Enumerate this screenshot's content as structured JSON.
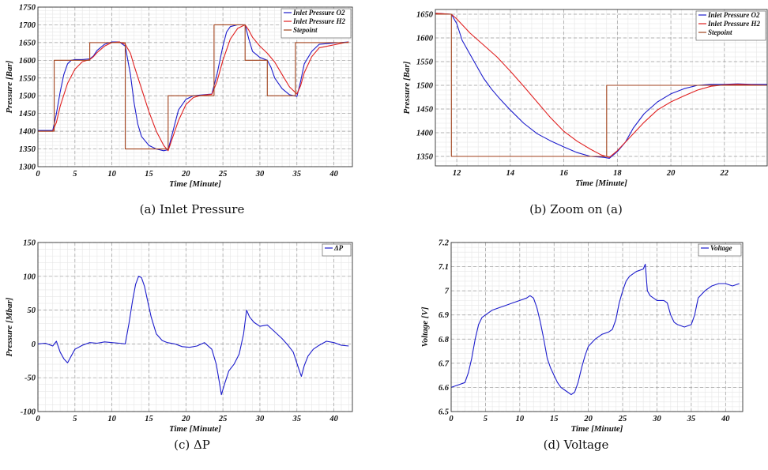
{
  "colors": {
    "o2": "#1c1ccc",
    "h2": "#e02020",
    "setpoint": "#a0421c",
    "dp": "#1c1ccc",
    "voltage": "#1c1ccc"
  },
  "chart_data": [
    {
      "id": "a",
      "type": "line",
      "caption": "(a) Inlet Pressure",
      "xlabel": "Time [Minute]",
      "ylabel": "Pressure [Bar]",
      "xlim": [
        0,
        42.5
      ],
      "ylim": [
        1300,
        1750
      ],
      "xticks": [
        0,
        5,
        10,
        15,
        20,
        25,
        30,
        35,
        40
      ],
      "yticks": [
        1300,
        1350,
        1400,
        1450,
        1500,
        1550,
        1600,
        1650,
        1700,
        1750
      ],
      "grid": true,
      "legend": "top-right",
      "series": [
        {
          "name": "Inlet Pressure O2",
          "color": "#1c1ccc",
          "x": [
            0,
            2,
            2.5,
            3,
            3.5,
            4,
            4.5,
            5,
            6,
            7,
            7.5,
            8,
            9,
            10,
            11,
            11.8,
            12.5,
            13,
            13.5,
            14,
            15,
            16,
            17,
            17.6,
            18,
            18.5,
            19,
            20,
            21,
            22,
            23.5,
            24.2,
            25,
            25.5,
            26,
            27,
            28,
            28.5,
            29,
            30,
            31,
            31.5,
            32,
            33,
            34,
            35,
            35.5,
            36,
            37,
            38,
            42
          ],
          "values": [
            1402,
            1402,
            1450,
            1510,
            1560,
            1590,
            1600,
            1602,
            1602,
            1604,
            1612,
            1628,
            1645,
            1652,
            1652,
            1640,
            1560,
            1480,
            1420,
            1385,
            1360,
            1350,
            1345,
            1348,
            1380,
            1420,
            1460,
            1490,
            1500,
            1502,
            1505,
            1560,
            1640,
            1680,
            1695,
            1700,
            1700,
            1660,
            1625,
            1608,
            1600,
            1580,
            1550,
            1520,
            1503,
            1498,
            1540,
            1590,
            1625,
            1645,
            1652
          ]
        },
        {
          "name": "Inlet Pressure H2",
          "color": "#e02020",
          "x": [
            0,
            2,
            2.5,
            3,
            4,
            5,
            6,
            7,
            7.5,
            8,
            9,
            10,
            11,
            11.8,
            12.5,
            13,
            14,
            15,
            16,
            17,
            17.6,
            18,
            19,
            20,
            21,
            22,
            23.5,
            24.2,
            25,
            26,
            27,
            28,
            28.5,
            29,
            30,
            31,
            32,
            33,
            34,
            35,
            35.5,
            36,
            37,
            38,
            42
          ],
          "values": [
            1400,
            1400,
            1425,
            1470,
            1535,
            1575,
            1596,
            1602,
            1610,
            1622,
            1640,
            1650,
            1652,
            1645,
            1620,
            1585,
            1520,
            1455,
            1400,
            1360,
            1345,
            1370,
            1430,
            1475,
            1495,
            1501,
            1504,
            1540,
            1600,
            1660,
            1690,
            1700,
            1685,
            1665,
            1640,
            1620,
            1595,
            1560,
            1525,
            1505,
            1528,
            1565,
            1610,
            1635,
            1652
          ]
        },
        {
          "name": "Stepoint",
          "color": "#a0421c",
          "step": true,
          "x": [
            0,
            2.2,
            2.2,
            7,
            7,
            11.8,
            11.8,
            17.6,
            17.6,
            23.8,
            23.8,
            28,
            28,
            31,
            31,
            34.8,
            34.8,
            42
          ],
          "values": [
            1400,
            1400,
            1600,
            1600,
            1650,
            1650,
            1350,
            1350,
            1500,
            1500,
            1700,
            1700,
            1600,
            1600,
            1500,
            1500,
            1650,
            1650
          ]
        }
      ]
    },
    {
      "id": "b",
      "type": "line",
      "caption": "(b) Zoom on (a)",
      "xlabel": "Time [Minute]",
      "ylabel": "Pressure [Bar]",
      "xlim": [
        11.2,
        23.6
      ],
      "ylim": [
        1330,
        1660
      ],
      "xticks": [
        12,
        14,
        16,
        18,
        20,
        22
      ],
      "yticks": [
        1350,
        1400,
        1450,
        1500,
        1550,
        1600,
        1650
      ],
      "grid": true,
      "legend": "top-right",
      "series": [
        {
          "name": "Inlet Pressure O2",
          "color": "#1c1ccc",
          "x": [
            11.2,
            11.8,
            12,
            12.2,
            12.5,
            12.8,
            13,
            13.3,
            13.6,
            14,
            14.5,
            15,
            15.5,
            16,
            16.5,
            17,
            17.5,
            17.7,
            18,
            18.3,
            18.6,
            19,
            19.5,
            20,
            20.5,
            21,
            21.5,
            22,
            22.5,
            23,
            23.6
          ],
          "values": [
            1652,
            1650,
            1630,
            1595,
            1565,
            1535,
            1515,
            1492,
            1472,
            1448,
            1420,
            1398,
            1383,
            1370,
            1358,
            1350,
            1348,
            1346,
            1360,
            1380,
            1410,
            1440,
            1465,
            1482,
            1493,
            1500,
            1502,
            1502,
            1503,
            1502,
            1502
          ]
        },
        {
          "name": "Inlet Pressure H2",
          "color": "#e02020",
          "x": [
            11.2,
            11.8,
            12,
            12.5,
            13,
            13.5,
            14,
            14.5,
            15,
            15.5,
            16,
            16.5,
            17,
            17.4,
            17.7,
            18,
            18.5,
            19,
            19.5,
            20,
            20.5,
            21,
            21.5,
            22,
            22.5,
            23,
            23.6
          ],
          "values": [
            1652,
            1650,
            1640,
            1610,
            1585,
            1560,
            1530,
            1498,
            1465,
            1432,
            1403,
            1382,
            1365,
            1353,
            1348,
            1362,
            1392,
            1422,
            1448,
            1465,
            1478,
            1490,
            1498,
            1501,
            1502,
            1501,
            1500
          ]
        },
        {
          "name": "Stepoint",
          "color": "#a0421c",
          "step": true,
          "x": [
            11.2,
            11.8,
            11.8,
            17.6,
            17.6,
            23.6
          ],
          "values": [
            1650,
            1650,
            1350,
            1350,
            1500,
            1500
          ]
        }
      ]
    },
    {
      "id": "c",
      "type": "line",
      "caption": "(c) ΔP",
      "xlabel": "Time [Minute]",
      "ylabel": "Pressure [Mbar]",
      "xlim": [
        0,
        42.5
      ],
      "ylim": [
        -100,
        150
      ],
      "xticks": [
        0,
        5,
        10,
        15,
        20,
        25,
        30,
        35,
        40
      ],
      "yticks": [
        -100,
        -50,
        0,
        50,
        100,
        150
      ],
      "grid": true,
      "legend": "top-right",
      "series": [
        {
          "name": "ΔP",
          "color": "#1c1ccc",
          "x": [
            0,
            1,
            2,
            2.5,
            3,
            3.5,
            4,
            4.5,
            5,
            6,
            7,
            8,
            9,
            10,
            11,
            11.8,
            12.3,
            12.8,
            13.2,
            13.6,
            14,
            14.4,
            14.8,
            15.3,
            16,
            16.8,
            17.5,
            18.5,
            19.5,
            20.5,
            21.5,
            22.5,
            23.5,
            24.1,
            24.5,
            24.8,
            25.2,
            25.8,
            26.5,
            27.2,
            27.8,
            28.2,
            28.6,
            29.2,
            30,
            31,
            32,
            33,
            33.8,
            34.5,
            35.2,
            35.6,
            36,
            36.5,
            37.2,
            38,
            39,
            40,
            41,
            42
          ],
          "values": [
            0,
            1,
            -3,
            4,
            -12,
            -22,
            -28,
            -18,
            -8,
            -2,
            2,
            1,
            3,
            2,
            1,
            0,
            30,
            65,
            88,
            100,
            98,
            85,
            65,
            40,
            15,
            5,
            2,
            0,
            -4,
            -5,
            -3,
            2,
            -8,
            -30,
            -55,
            -75,
            -60,
            -40,
            -30,
            -15,
            15,
            50,
            40,
            32,
            26,
            28,
            18,
            8,
            -2,
            -12,
            -35,
            -48,
            -32,
            -18,
            -8,
            -2,
            4,
            2,
            -2,
            -3
          ]
        }
      ]
    },
    {
      "id": "d",
      "type": "line",
      "caption": "(d) Voltage",
      "xlabel": "Time [Minute]",
      "ylabel": "Voltage [V]",
      "xlim": [
        0,
        42.5
      ],
      "ylim": [
        6.5,
        7.2
      ],
      "xticks": [
        0,
        5,
        10,
        15,
        20,
        25,
        30,
        35,
        40
      ],
      "yticks": [
        6.5,
        6.6,
        6.7,
        6.8,
        6.9,
        7,
        7.1,
        7.2
      ],
      "grid": true,
      "legend": "top-right",
      "series": [
        {
          "name": "Voltage",
          "color": "#1c1ccc",
          "x": [
            0,
            1,
            2,
            2.5,
            3,
            3.5,
            4,
            4.5,
            5,
            6,
            7,
            8,
            9,
            10,
            11,
            11.5,
            12,
            12.5,
            13,
            13.5,
            14,
            14.5,
            15,
            15.5,
            16,
            16.5,
            17,
            17.5,
            18,
            18.5,
            19,
            19.5,
            20,
            21,
            22,
            23,
            23.5,
            24,
            24.5,
            25,
            25.5,
            26,
            27,
            28,
            28.3,
            28.6,
            29,
            30,
            31,
            31.5,
            32,
            32.5,
            33,
            34,
            35,
            35.5,
            36,
            37,
            38,
            39,
            40,
            41,
            42
          ],
          "values": [
            6.6,
            6.61,
            6.62,
            6.66,
            6.72,
            6.8,
            6.86,
            6.89,
            6.9,
            6.92,
            6.93,
            6.94,
            6.95,
            6.96,
            6.97,
            6.98,
            6.97,
            6.93,
            6.87,
            6.8,
            6.72,
            6.68,
            6.65,
            6.62,
            6.6,
            6.59,
            6.58,
            6.57,
            6.58,
            6.62,
            6.68,
            6.73,
            6.77,
            6.8,
            6.82,
            6.83,
            6.84,
            6.88,
            6.95,
            7.0,
            7.04,
            7.06,
            7.08,
            7.09,
            7.11,
            7.0,
            6.98,
            6.96,
            6.96,
            6.95,
            6.9,
            6.87,
            6.86,
            6.85,
            6.86,
            6.9,
            6.97,
            7.0,
            7.02,
            7.03,
            7.03,
            7.02,
            7.03
          ]
        }
      ]
    }
  ]
}
